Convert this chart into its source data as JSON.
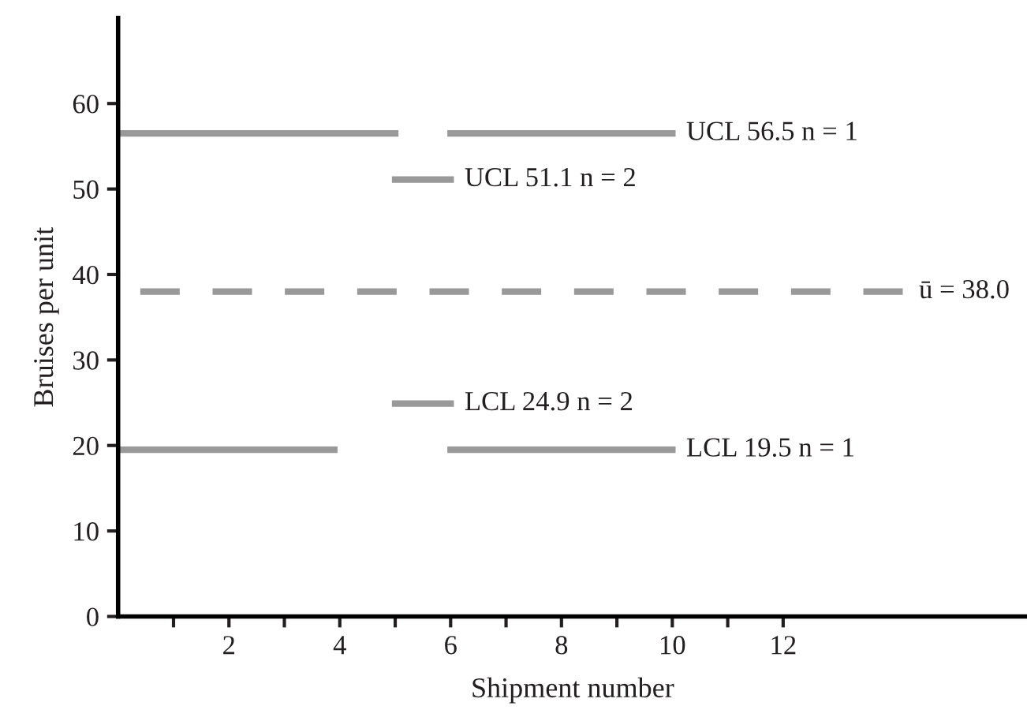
{
  "chart_data": {
    "type": "line",
    "xlabel": "Shipment number",
    "ylabel": "Bruises per unit",
    "xlim": [
      0,
      16.4
    ],
    "ylim": [
      0,
      70
    ],
    "xticks": [
      {
        "value": 1,
        "label": null
      },
      2,
      {
        "value": 3,
        "label": null
      },
      4,
      {
        "value": 5,
        "label": null
      },
      6,
      {
        "value": 7,
        "label": null
      },
      8,
      {
        "value": 9,
        "label": null
      },
      10,
      {
        "value": 11,
        "label": null
      },
      12
    ],
    "yticks": [
      0,
      10,
      20,
      30,
      40,
      50,
      60
    ],
    "grid": false,
    "marker": "none",
    "series": [
      {
        "name": "UCL 56.5 n = 1",
        "color": "#999999",
        "line_style": "solid",
        "x": [
          0,
          5,
          5.5,
          6,
          10
        ],
        "values": [
          56.5,
          56.5,
          null,
          56.5,
          56.5
        ]
      },
      {
        "name": "UCL 51.1 n = 2",
        "color": "#999999",
        "line_style": "solid",
        "x": [
          5,
          6
        ],
        "values": [
          51.1,
          51.1
        ]
      },
      {
        "name": "ū = 38.0",
        "color": "#999999",
        "line_style": "dashed",
        "x": [
          0.4,
          14.2
        ],
        "values": [
          38.0,
          38.0
        ]
      },
      {
        "name": "LCL 24.9 n = 2",
        "color": "#999999",
        "line_style": "solid",
        "x": [
          5,
          6
        ],
        "values": [
          24.9,
          24.9
        ]
      },
      {
        "name": "LCL 19.5 n = 1",
        "color": "#999999",
        "line_style": "solid",
        "x": [
          0,
          3.9,
          5,
          6,
          10
        ],
        "values": [
          19.5,
          19.5,
          null,
          19.5,
          19.5
        ]
      }
    ]
  }
}
